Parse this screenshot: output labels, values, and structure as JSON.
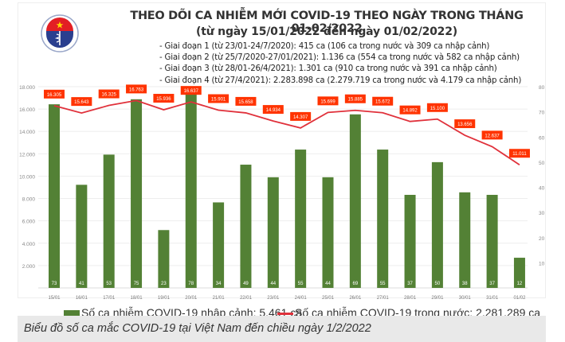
{
  "header": {
    "title": "THEO DÕI CA NHIỄM MỚI COVID-19 THEO NGÀY TRONG THÁNG 01-02/2022",
    "subtitle": "(từ ngày 15/01/2022 đến ngày 01/02/2022)",
    "phases": [
      "- Giai đoạn 1 (từ 23/01-24/7/2020): 415 ca (106 ca trong nước và 309 ca nhập cảnh)",
      "- Giai đoạn 2 (từ 25/7/2020-27/01/2021): 1.136 ca (554 ca trong nước và 582 ca nhập cảnh)",
      "- Giai đoạn 3 (từ 28/01-26/4/2021): 1.301 ca (910 ca trong nước và 391 ca nhập cảnh)",
      "- Giai đoạn 4 (từ 27/4/2021): 2.283.898 ca (2.279.719 ca trong nước và 4.179 ca nhập cảnh)"
    ],
    "logo_text": "BỘ Y TẾ"
  },
  "legend": {
    "bar_label": "Số ca nhiễm COVID-19 nhập cảnh: 5.461 ca",
    "line_label": "Số ca nhiễm COVID-19 trong nước: 2.281.289 ca"
  },
  "caption": "Biểu đồ số ca mắc COVID-19 tại Việt Nam đến chiều ngày 1/2/2022",
  "colors": {
    "bar": "#538135",
    "line": "#e0313b",
    "label_bg": "#ff3300",
    "grid": "#eeeeee"
  },
  "chart_data": {
    "type": "bar+line",
    "title": "THEO DÕI CA NHIỄM MỚI COVID-19 THEO NGÀY TRONG THÁNG 01-02/2022",
    "subtitle": "(từ ngày 15/01/2022 đến ngày 01/02/2022)",
    "categories": [
      "15/01",
      "16/01",
      "17/01",
      "18/01",
      "19/01",
      "20/01",
      "21/01",
      "22/01",
      "23/01",
      "24/01",
      "25/01",
      "26/01",
      "27/01",
      "28/01",
      "29/01",
      "30/01",
      "31/01",
      "01/02"
    ],
    "series": [
      {
        "name": "Số ca nhiễm COVID-19 nhập cảnh: 5.461 ca",
        "type": "bar",
        "axis": "right",
        "values": [
          73,
          41,
          53,
          75,
          23,
          78,
          34,
          49,
          44,
          55,
          44,
          69,
          55,
          37,
          50,
          38,
          37,
          12
        ]
      },
      {
        "name": "Số ca nhiễm COVID-19 trong nước: 2.281.289 ca",
        "type": "line",
        "axis": "left",
        "values": [
          16305,
          15643,
          16325,
          16763,
          15936,
          16637,
          15901,
          15658,
          14934,
          14307,
          15699,
          15885,
          15672,
          14892,
          15100,
          13656,
          12637,
          11011
        ],
        "labels": [
          "16.305",
          "15.643",
          "16.325",
          "16.763",
          "15.936",
          "16.637",
          "15.901",
          "15.658",
          "14.934",
          "14.307",
          "15.699",
          "15.885",
          "15.672",
          "14.892",
          "15.100",
          "13.656",
          "12.637",
          "11.011"
        ]
      }
    ],
    "left_axis": {
      "ylim": [
        0,
        18000
      ],
      "ticks": [
        "",
        "2.000",
        "4.000",
        "6.000",
        "8.000",
        "10.000",
        "12.000",
        "14.000",
        "16.000",
        "18.000"
      ]
    },
    "right_axis": {
      "ylim": [
        0,
        80
      ],
      "ticks": [
        "",
        "10",
        "20",
        "30",
        "40",
        "50",
        "60",
        "70",
        "80"
      ]
    },
    "grid": true,
    "legend_position": "bottom"
  }
}
